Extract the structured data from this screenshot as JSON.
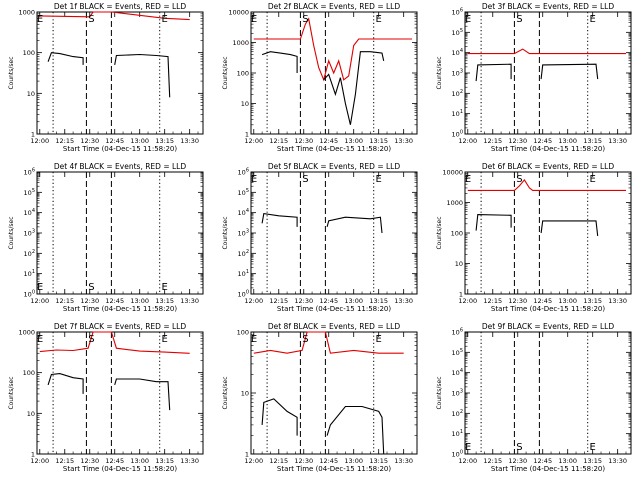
{
  "chart_data": [
    {
      "title": "Det 1f BLACK = Events, RED = LLD",
      "type": "line",
      "yscale": "log",
      "ylim": [
        1,
        1000
      ],
      "ytick_labels": [
        "1",
        "10",
        "100",
        "1000"
      ],
      "ylabel": "Counts/sec",
      "xlabel": "Start Time (04-Dec-15 11:58:20)",
      "xtick_labels": [
        "12:00",
        "12:15",
        "12:30",
        "12:45",
        "13:00",
        "13:15",
        "13:30"
      ],
      "markers": [
        {
          "label": "E",
          "time": "12:00"
        },
        {
          "label": "S",
          "time": "12:31"
        },
        {
          "label": "E",
          "time": "13:15"
        }
      ],
      "series": [
        {
          "color": "red",
          "points": [
            [
              "12:00",
              800
            ],
            [
              "12:30",
              760
            ],
            [
              "12:32",
              1000
            ],
            [
              "12:43",
              1000
            ],
            [
              "13:15",
              700
            ],
            [
              "13:30",
              650
            ]
          ]
        },
        {
          "color": "black",
          "points": [
            [
              "12:05",
              60
            ],
            [
              "12:07",
              100
            ],
            [
              "12:12",
              95
            ],
            [
              "12:20",
              80
            ],
            [
              "12:26",
              75
            ],
            [
              "12:26",
              50
            ]
          ]
        },
        {
          "color": "black",
          "points": [
            [
              "12:45",
              50
            ],
            [
              "12:46",
              85
            ],
            [
              "13:00",
              90
            ],
            [
              "13:10",
              85
            ],
            [
              "13:17",
              80
            ],
            [
              "13:18",
              8
            ]
          ]
        }
      ]
    },
    {
      "title": "Det 2f BLACK = Events, RED = LLD",
      "type": "line",
      "yscale": "log",
      "ylim": [
        1,
        10000
      ],
      "ytick_labels": [
        "1",
        "10",
        "100",
        "1000",
        "10000"
      ],
      "ylabel": "Counts/sec",
      "xlabel": "Start Time (04-Dec-15 11:58:20)",
      "xtick_labels": [
        "12:00",
        "12:15",
        "12:30",
        "12:45",
        "13:00",
        "13:15",
        "13:30"
      ],
      "markers": [
        {
          "label": "E",
          "time": "12:00"
        },
        {
          "label": "S",
          "time": "12:31"
        },
        {
          "label": "E",
          "time": "13:15"
        }
      ],
      "series": [
        {
          "color": "red",
          "points": [
            [
              "12:00",
              1300
            ],
            [
              "12:28",
              1300
            ],
            [
              "12:31",
              4000
            ],
            [
              "12:33",
              6000
            ],
            [
              "12:36",
              800
            ],
            [
              "12:39",
              150
            ],
            [
              "12:42",
              60
            ],
            [
              "12:45",
              250
            ],
            [
              "12:48",
              100
            ],
            [
              "12:51",
              250
            ],
            [
              "12:54",
              60
            ],
            [
              "12:57",
              80
            ],
            [
              "13:00",
              800
            ],
            [
              "13:03",
              1300
            ],
            [
              "13:35",
              1300
            ]
          ]
        },
        {
          "color": "black",
          "points": [
            [
              "12:05",
              400
            ],
            [
              "12:10",
              500
            ],
            [
              "12:16",
              450
            ],
            [
              "12:22",
              400
            ],
            [
              "12:26",
              350
            ],
            [
              "12:26",
              100
            ]
          ]
        },
        {
          "color": "black",
          "points": [
            [
              "12:42",
              60
            ],
            [
              "12:45",
              90
            ],
            [
              "12:49",
              20
            ],
            [
              "12:52",
              70
            ],
            [
              "12:55",
              10
            ],
            [
              "12:58",
              2
            ],
            [
              "13:01",
              20
            ],
            [
              "13:04",
              500
            ],
            [
              "13:10",
              500
            ],
            [
              "13:17",
              450
            ],
            [
              "13:18",
              250
            ]
          ]
        }
      ]
    },
    {
      "title": "Det 3f BLACK = Events, RED = LLD",
      "type": "line",
      "yscale": "log",
      "ylim": [
        1,
        1000000
      ],
      "ytick_labels": [
        "10^0",
        "10^1",
        "10^2",
        "10^3",
        "10^4",
        "10^5",
        "10^6"
      ],
      "ylabel": "Counts/sec",
      "xlabel": "Start Time (04-Dec-15 11:58:20)",
      "xtick_labels": [
        "12:00",
        "12:15",
        "12:30",
        "12:45",
        "13:00",
        "13:15",
        "13:30"
      ],
      "markers": [
        {
          "label": "E",
          "time": "12:00"
        },
        {
          "label": "S",
          "time": "12:31"
        },
        {
          "label": "E",
          "time": "13:15"
        }
      ],
      "series": [
        {
          "color": "red",
          "points": [
            [
              "12:00",
              9000
            ],
            [
              "12:28",
              9000
            ],
            [
              "12:33",
              15000
            ],
            [
              "12:37",
              9000
            ],
            [
              "13:35",
              9000
            ]
          ]
        },
        {
          "color": "black",
          "points": [
            [
              "12:05",
              400
            ],
            [
              "12:06",
              2500
            ],
            [
              "12:26",
              2700
            ],
            [
              "12:26",
              500
            ]
          ]
        },
        {
          "color": "black",
          "points": [
            [
              "12:44",
              500
            ],
            [
              "12:45",
              2500
            ],
            [
              "13:17",
              2700
            ],
            [
              "13:18",
              500
            ]
          ]
        }
      ]
    },
    {
      "title": "Det 4f BLACK = Events, RED = LLD",
      "type": "line",
      "yscale": "log",
      "ylim": [
        1,
        1000000
      ],
      "ytick_labels": [
        "10^0",
        "10^1",
        "10^2",
        "10^3",
        "10^4",
        "10^5",
        "10^6"
      ],
      "ylabel": "Counts/sec",
      "xlabel": "Start Time (04-Dec-15 11:58:20)",
      "xtick_labels": [
        "12:00",
        "12:15",
        "12:30",
        "12:45",
        "13:00",
        "13:15",
        "13:30"
      ],
      "markers": [
        {
          "label": "E",
          "time": "12:00"
        },
        {
          "label": "S",
          "time": "12:31"
        },
        {
          "label": "E",
          "time": "13:15"
        }
      ],
      "series": []
    },
    {
      "title": "Det 5f BLACK = Events, RED = LLD",
      "type": "line",
      "yscale": "log",
      "ylim": [
        1,
        1000000
      ],
      "ytick_labels": [
        "10^0",
        "10^1",
        "10^2",
        "10^3",
        "10^4",
        "10^5",
        "10^6"
      ],
      "ylabel": "Counts/sec",
      "xlabel": "Start Time (04-Dec-15 11:58:20)",
      "xtick_labels": [
        "12:00",
        "12:15",
        "12:30",
        "12:45",
        "13:00",
        "13:15",
        "13:30"
      ],
      "markers": [
        {
          "label": "E",
          "time": "12:00"
        },
        {
          "label": "S",
          "time": "12:31"
        },
        {
          "label": "E",
          "time": "13:15"
        }
      ],
      "series": [
        {
          "color": "black",
          "points": [
            [
              "12:05",
              3000
            ],
            [
              "12:06",
              9000
            ],
            [
              "12:15",
              7000
            ],
            [
              "12:26",
              6000
            ],
            [
              "12:26",
              2000
            ]
          ]
        },
        {
          "color": "black",
          "points": [
            [
              "12:44",
              2000
            ],
            [
              "12:45",
              4000
            ],
            [
              "12:55",
              6000
            ],
            [
              "13:10",
              5000
            ],
            [
              "13:16",
              6000
            ],
            [
              "13:17",
              1000
            ]
          ]
        }
      ]
    },
    {
      "title": "Det 6f BLACK = Events, RED = LLD",
      "type": "line",
      "yscale": "log",
      "ylim": [
        1,
        10000
      ],
      "ytick_labels": [
        "1",
        "10",
        "100",
        "1000",
        "10000"
      ],
      "ylabel": "Counts/sec",
      "xlabel": "Start Time (04-Dec-15 11:58:20)",
      "xtick_labels": [
        "12:00",
        "12:15",
        "12:30",
        "12:45",
        "13:00",
        "13:15",
        "13:30"
      ],
      "markers": [
        {
          "label": "E",
          "time": "12:00"
        },
        {
          "label": "S",
          "time": "12:31"
        },
        {
          "label": "E",
          "time": "13:15"
        }
      ],
      "series": [
        {
          "color": "red",
          "points": [
            [
              "12:00",
              2500
            ],
            [
              "12:28",
              2500
            ],
            [
              "12:31",
              3500
            ],
            [
              "12:34",
              5500
            ],
            [
              "12:37",
              3000
            ],
            [
              "12:39",
              2500
            ],
            [
              "13:35",
              2500
            ]
          ]
        },
        {
          "color": "black",
          "points": [
            [
              "12:05",
              120
            ],
            [
              "12:06",
              400
            ],
            [
              "12:26",
              380
            ],
            [
              "12:26",
              150
            ]
          ]
        },
        {
          "color": "black",
          "points": [
            [
              "12:44",
              100
            ],
            [
              "12:45",
              250
            ],
            [
              "13:17",
              250
            ],
            [
              "13:18",
              80
            ]
          ]
        }
      ]
    },
    {
      "title": "Det 7f BLACK = Events, RED = LLD",
      "type": "line",
      "yscale": "log",
      "ylim": [
        1,
        1000
      ],
      "ytick_labels": [
        "1",
        "10",
        "100",
        "1000"
      ],
      "ylabel": "Counts/sec",
      "xlabel": "Start Time (04-Dec-15 11:58:20)",
      "xtick_labels": [
        "12:00",
        "12:15",
        "12:30",
        "12:45",
        "13:00",
        "13:15",
        "13:30"
      ],
      "markers": [
        {
          "label": "E",
          "time": "12:00"
        },
        {
          "label": "S",
          "time": "12:31"
        },
        {
          "label": "E",
          "time": "13:15"
        }
      ],
      "series": [
        {
          "color": "red",
          "points": [
            [
              "12:00",
              330
            ],
            [
              "12:10",
              360
            ],
            [
              "12:20",
              350
            ],
            [
              "12:29",
              400
            ],
            [
              "12:32",
              1000
            ],
            [
              "12:43",
              1000
            ],
            [
              "12:46",
              400
            ],
            [
              "13:00",
              340
            ],
            [
              "13:15",
              320
            ],
            [
              "13:30",
              300
            ]
          ]
        },
        {
          "color": "black",
          "points": [
            [
              "12:05",
              50
            ],
            [
              "12:07",
              90
            ],
            [
              "12:12",
              95
            ],
            [
              "12:20",
              75
            ],
            [
              "12:26",
              70
            ],
            [
              "12:26",
              30
            ]
          ]
        },
        {
          "color": "black",
          "points": [
            [
              "12:45",
              50
            ],
            [
              "12:46",
              70
            ],
            [
              "13:00",
              70
            ],
            [
              "13:10",
              60
            ],
            [
              "13:17",
              60
            ],
            [
              "13:18",
              12
            ]
          ]
        }
      ]
    },
    {
      "title": "Det 8f BLACK = Events, RED = LLD",
      "type": "line",
      "yscale": "log",
      "ylim": [
        1,
        100
      ],
      "ytick_labels": [
        "1",
        "10",
        "100"
      ],
      "ylabel": "Counts/sec",
      "xlabel": "Start Time (04-Dec-15 11:58:20)",
      "xtick_labels": [
        "12:00",
        "12:15",
        "12:30",
        "12:45",
        "13:00",
        "13:15",
        "13:30"
      ],
      "markers": [
        {
          "label": "E",
          "time": "12:00"
        },
        {
          "label": "S",
          "time": "12:31"
        },
        {
          "label": "E",
          "time": "13:15"
        }
      ],
      "series": [
        {
          "color": "red",
          "points": [
            [
              "12:00",
              45
            ],
            [
              "12:10",
              50
            ],
            [
              "12:20",
              45
            ],
            [
              "12:29",
              50
            ],
            [
              "12:32",
              100
            ],
            [
              "12:43",
              100
            ],
            [
              "12:46",
              45
            ],
            [
              "13:00",
              50
            ],
            [
              "13:15",
              45
            ],
            [
              "13:30",
              45
            ]
          ]
        },
        {
          "color": "black",
          "points": [
            [
              "12:05",
              3
            ],
            [
              "12:06",
              7
            ],
            [
              "12:12",
              8
            ],
            [
              "12:20",
              5
            ],
            [
              "12:26",
              4
            ],
            [
              "12:26",
              2
            ]
          ]
        },
        {
          "color": "black",
          "points": [
            [
              "12:44",
              2
            ],
            [
              "12:46",
              3
            ],
            [
              "12:55",
              6
            ],
            [
              "13:05",
              6
            ],
            [
              "13:15",
              5
            ],
            [
              "13:17",
              4
            ],
            [
              "13:18",
              1
            ]
          ]
        }
      ]
    },
    {
      "title": "Det 9f BLACK = Events, RED = LLD",
      "type": "line",
      "yscale": "log",
      "ylim": [
        1,
        1000000
      ],
      "ytick_labels": [
        "10^0",
        "10^1",
        "10^2",
        "10^3",
        "10^4",
        "10^5",
        "10^6"
      ],
      "ylabel": "Counts/sec",
      "xlabel": "Start Time (04-Dec-15 11:58:20)",
      "xtick_labels": [
        "12:00",
        "12:15",
        "12:30",
        "12:45",
        "13:00",
        "13:15",
        "13:30"
      ],
      "markers": [
        {
          "label": "E",
          "time": "12:00"
        },
        {
          "label": "S",
          "time": "12:31"
        },
        {
          "label": "E",
          "time": "13:15"
        }
      ],
      "series": []
    }
  ]
}
